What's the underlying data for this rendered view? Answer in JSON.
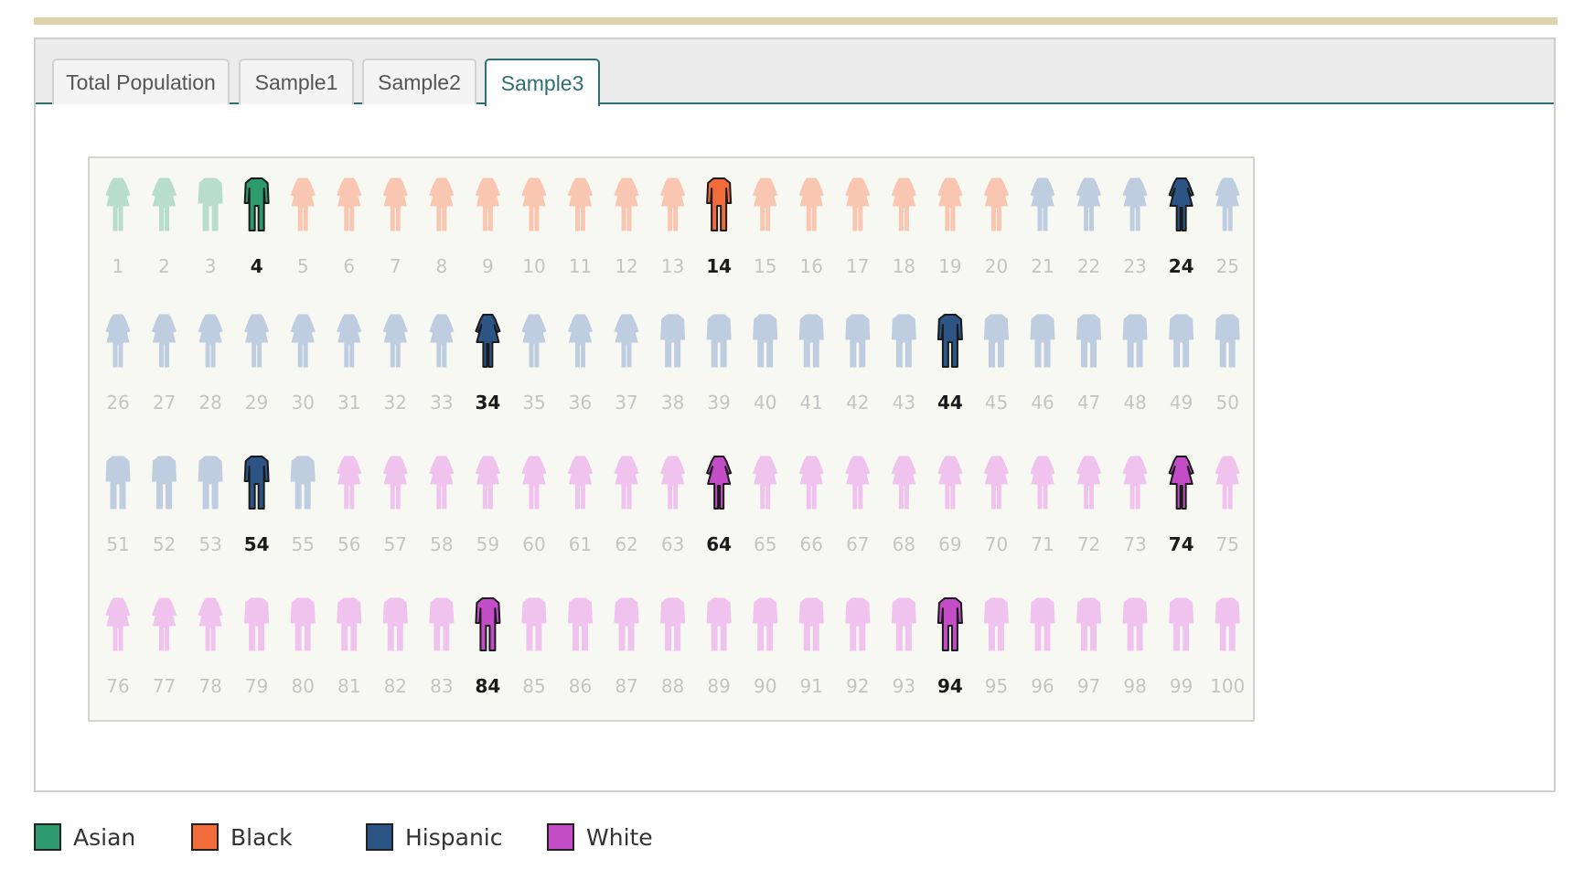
{
  "tabs": [
    {
      "label": "Total Population",
      "active": false
    },
    {
      "label": "Sample1",
      "active": false
    },
    {
      "label": "Sample2",
      "active": false
    },
    {
      "label": "Sample3",
      "active": true
    }
  ],
  "colors": {
    "Asian": {
      "dark": "#2e9a6e",
      "light": "#b9ddcc"
    },
    "Black": {
      "dark": "#f26b3a",
      "light": "#f9c6b2"
    },
    "Hispanic": {
      "dark": "#2c5586",
      "light": "#bfcde0"
    },
    "White": {
      "dark": "#c24dc6",
      "light": "#efc3ee"
    }
  },
  "figure_icon": "person-icon",
  "population": {
    "total": 100,
    "per_row": 25,
    "groups": [
      {
        "name": "Asian",
        "from": 1,
        "to": 4
      },
      {
        "name": "Black",
        "from": 5,
        "to": 20
      },
      {
        "name": "Hispanic",
        "from": 21,
        "to": 55
      },
      {
        "name": "White",
        "from": 56,
        "to": 100
      }
    ],
    "female_ids": [
      1,
      2,
      5,
      6,
      7,
      8,
      9,
      10,
      11,
      12,
      13,
      15,
      16,
      17,
      18,
      19,
      20,
      21,
      22,
      23,
      24,
      25,
      26,
      27,
      28,
      29,
      30,
      31,
      32,
      33,
      34,
      35,
      36,
      37,
      56,
      57,
      58,
      59,
      60,
      61,
      62,
      63,
      64,
      65,
      66,
      67,
      68,
      69,
      70,
      71,
      72,
      73,
      74,
      75,
      76,
      77,
      78
    ],
    "sampled_ids": [
      4,
      14,
      24,
      34,
      44,
      54,
      64,
      74,
      84,
      94
    ]
  },
  "legend": [
    {
      "label": "Asian",
      "color": "#2e9a6e"
    },
    {
      "label": "Black",
      "color": "#f26b3a"
    },
    {
      "label": "Hispanic",
      "color": "#2c5586"
    },
    {
      "label": "White",
      "color": "#c24dc6"
    }
  ]
}
